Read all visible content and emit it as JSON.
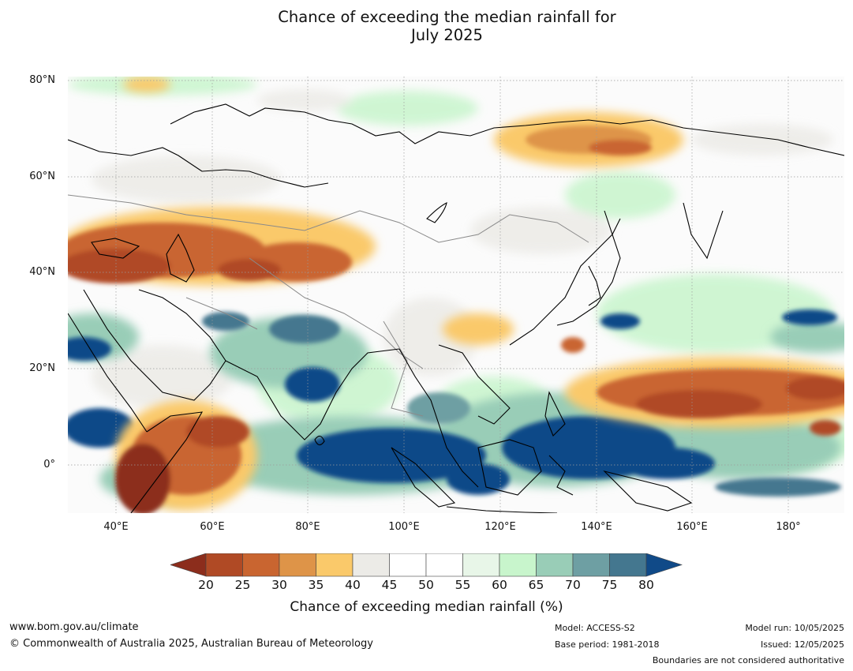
{
  "title_line1": "Chance of exceeding the median rainfall for",
  "title_line2": "July 2025",
  "lat_labels": [
    "80°N",
    "60°N",
    "40°N",
    "20°N",
    "0°"
  ],
  "lon_labels": [
    "40°E",
    "60°E",
    "80°E",
    "100°E",
    "120°E",
    "140°E",
    "160°E",
    "180°"
  ],
  "colorbar": {
    "ticks": [
      "20",
      "25",
      "30",
      "35",
      "40",
      "45",
      "50",
      "55",
      "60",
      "65",
      "70",
      "75",
      "80"
    ],
    "colors": [
      "#8c2d1c",
      "#b04a25",
      "#c96530",
      "#de9448",
      "#fac96a",
      "#ecebe7",
      "#ffffff",
      "#ffffff",
      "#e8f6e8",
      "#c8f5cc",
      "#99cdb7",
      "#6e9fa3",
      "#44778f",
      "#104a88"
    ],
    "title": "Chance of exceeding median rainfall (%)"
  },
  "footer": {
    "website": "www.bom.gov.au/climate",
    "copyright": "© Commonwealth of Australia 2025, Australian Bureau of Meteorology",
    "model": "Model: ACCESS-S2",
    "base_period": "Base period: 1981-2018",
    "model_run": "Model run: 10/05/2025",
    "issued": "Issued: 12/05/2025",
    "boundaries_note": "Boundaries are not considered authoritative"
  }
}
